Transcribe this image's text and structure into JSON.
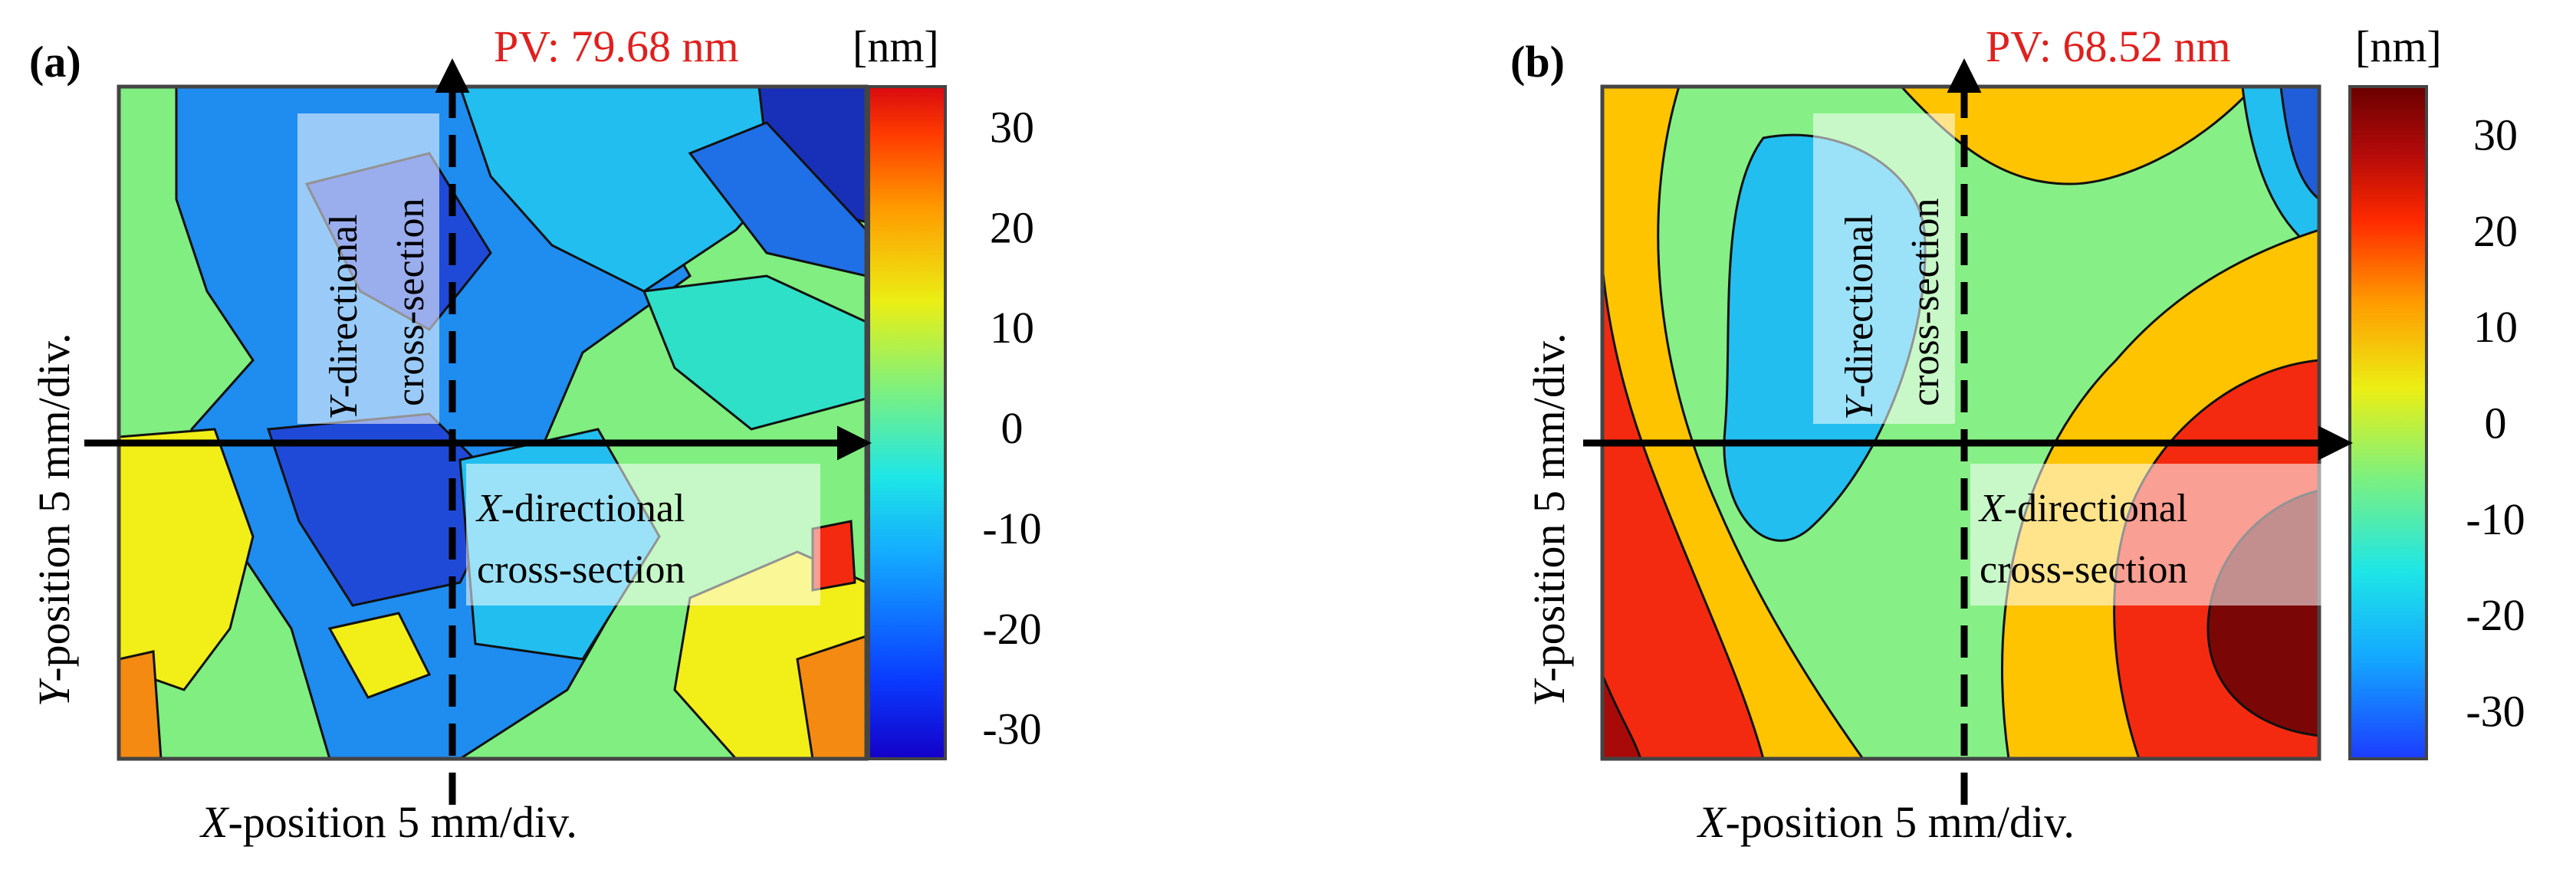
{
  "chart_data": [
    {
      "type": "heatmap",
      "panel_label": "(a)",
      "pv_label": "PV: 79.68 nm",
      "unit_label": "[nm]",
      "xlabel_var": "X",
      "xlabel_rest": "-position 5 mm/div.",
      "ylabel_var": "Y",
      "ylabel_rest": "-position 5 mm/div.",
      "colorbar": {
        "ticks": [
          "30",
          "20",
          "10",
          "0",
          "-10",
          "-20",
          "-30"
        ],
        "range": [
          -33,
          34
        ]
      },
      "annotations": {
        "y_section": {
          "var": "Y",
          "rest": "-directional",
          "line2": "cross-section"
        },
        "x_section": {
          "var": "X",
          "rest": "-directional",
          "line2": "cross-section"
        }
      }
    },
    {
      "type": "heatmap",
      "panel_label": "(b)",
      "pv_label": "PV: 68.52 nm",
      "unit_label": "[nm]",
      "xlabel_var": "X",
      "xlabel_rest": "-position 5 mm/div.",
      "ylabel_var": "Y",
      "ylabel_rest": "-position 5 mm/div.",
      "colorbar": {
        "ticks": [
          "30",
          "20",
          "10",
          "0",
          "-10",
          "-20",
          "-30"
        ],
        "range": [
          -35,
          35
        ]
      },
      "annotations": {
        "y_section": {
          "var": "Y",
          "rest": "-directional",
          "line2": "cross-section"
        },
        "x_section": {
          "var": "X",
          "rest": "-directional",
          "line2": "cross-section"
        }
      }
    }
  ],
  "colors": {
    "pv_text": "#e0201e",
    "darkblue": "#1730c8",
    "blue": "#1f6fe6",
    "cyan": "#19c8f0",
    "teal": "#2ee0c8",
    "green": "#80ee80",
    "lightgreen": "#86f086",
    "yellow": "#f2ee18",
    "gold": "#ffc400",
    "orange": "#f48a12",
    "red": "#f42a10",
    "darkred": "#7a0606"
  }
}
